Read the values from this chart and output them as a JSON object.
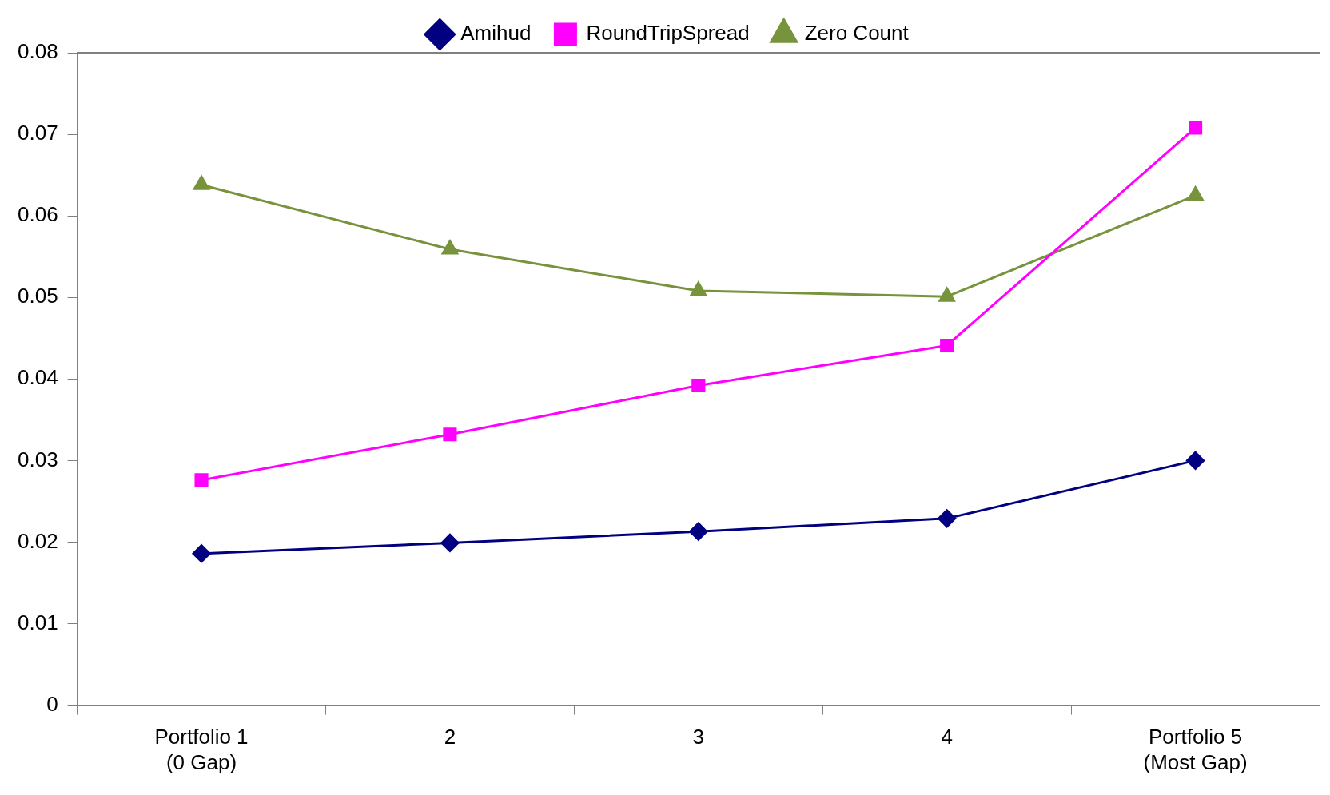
{
  "chart_data": {
    "type": "line",
    "categories": [
      "Portfolio 1\n(0 Gap)",
      "2",
      "3",
      "4",
      "Portfolio 5\n(Most Gap)"
    ],
    "series": [
      {
        "name": "Amihud",
        "color": "#000080",
        "marker": "diamond",
        "values": [
          0.0186,
          0.0199,
          0.0213,
          0.0229,
          0.03
        ]
      },
      {
        "name": "RoundTripSpread",
        "color": "#ff00ff",
        "marker": "square",
        "values": [
          0.0276,
          0.0332,
          0.0392,
          0.0441,
          0.0708
        ]
      },
      {
        "name": "Zero Count",
        "color": "#77933c",
        "marker": "triangle",
        "values": [
          0.0638,
          0.0559,
          0.0508,
          0.0501,
          0.0625
        ]
      }
    ],
    "ylim": [
      0,
      0.08
    ],
    "yticks": [
      0,
      0.01,
      0.02,
      0.03,
      0.04,
      0.05,
      0.06,
      0.07,
      0.08
    ],
    "grid": false,
    "legend": "top"
  }
}
